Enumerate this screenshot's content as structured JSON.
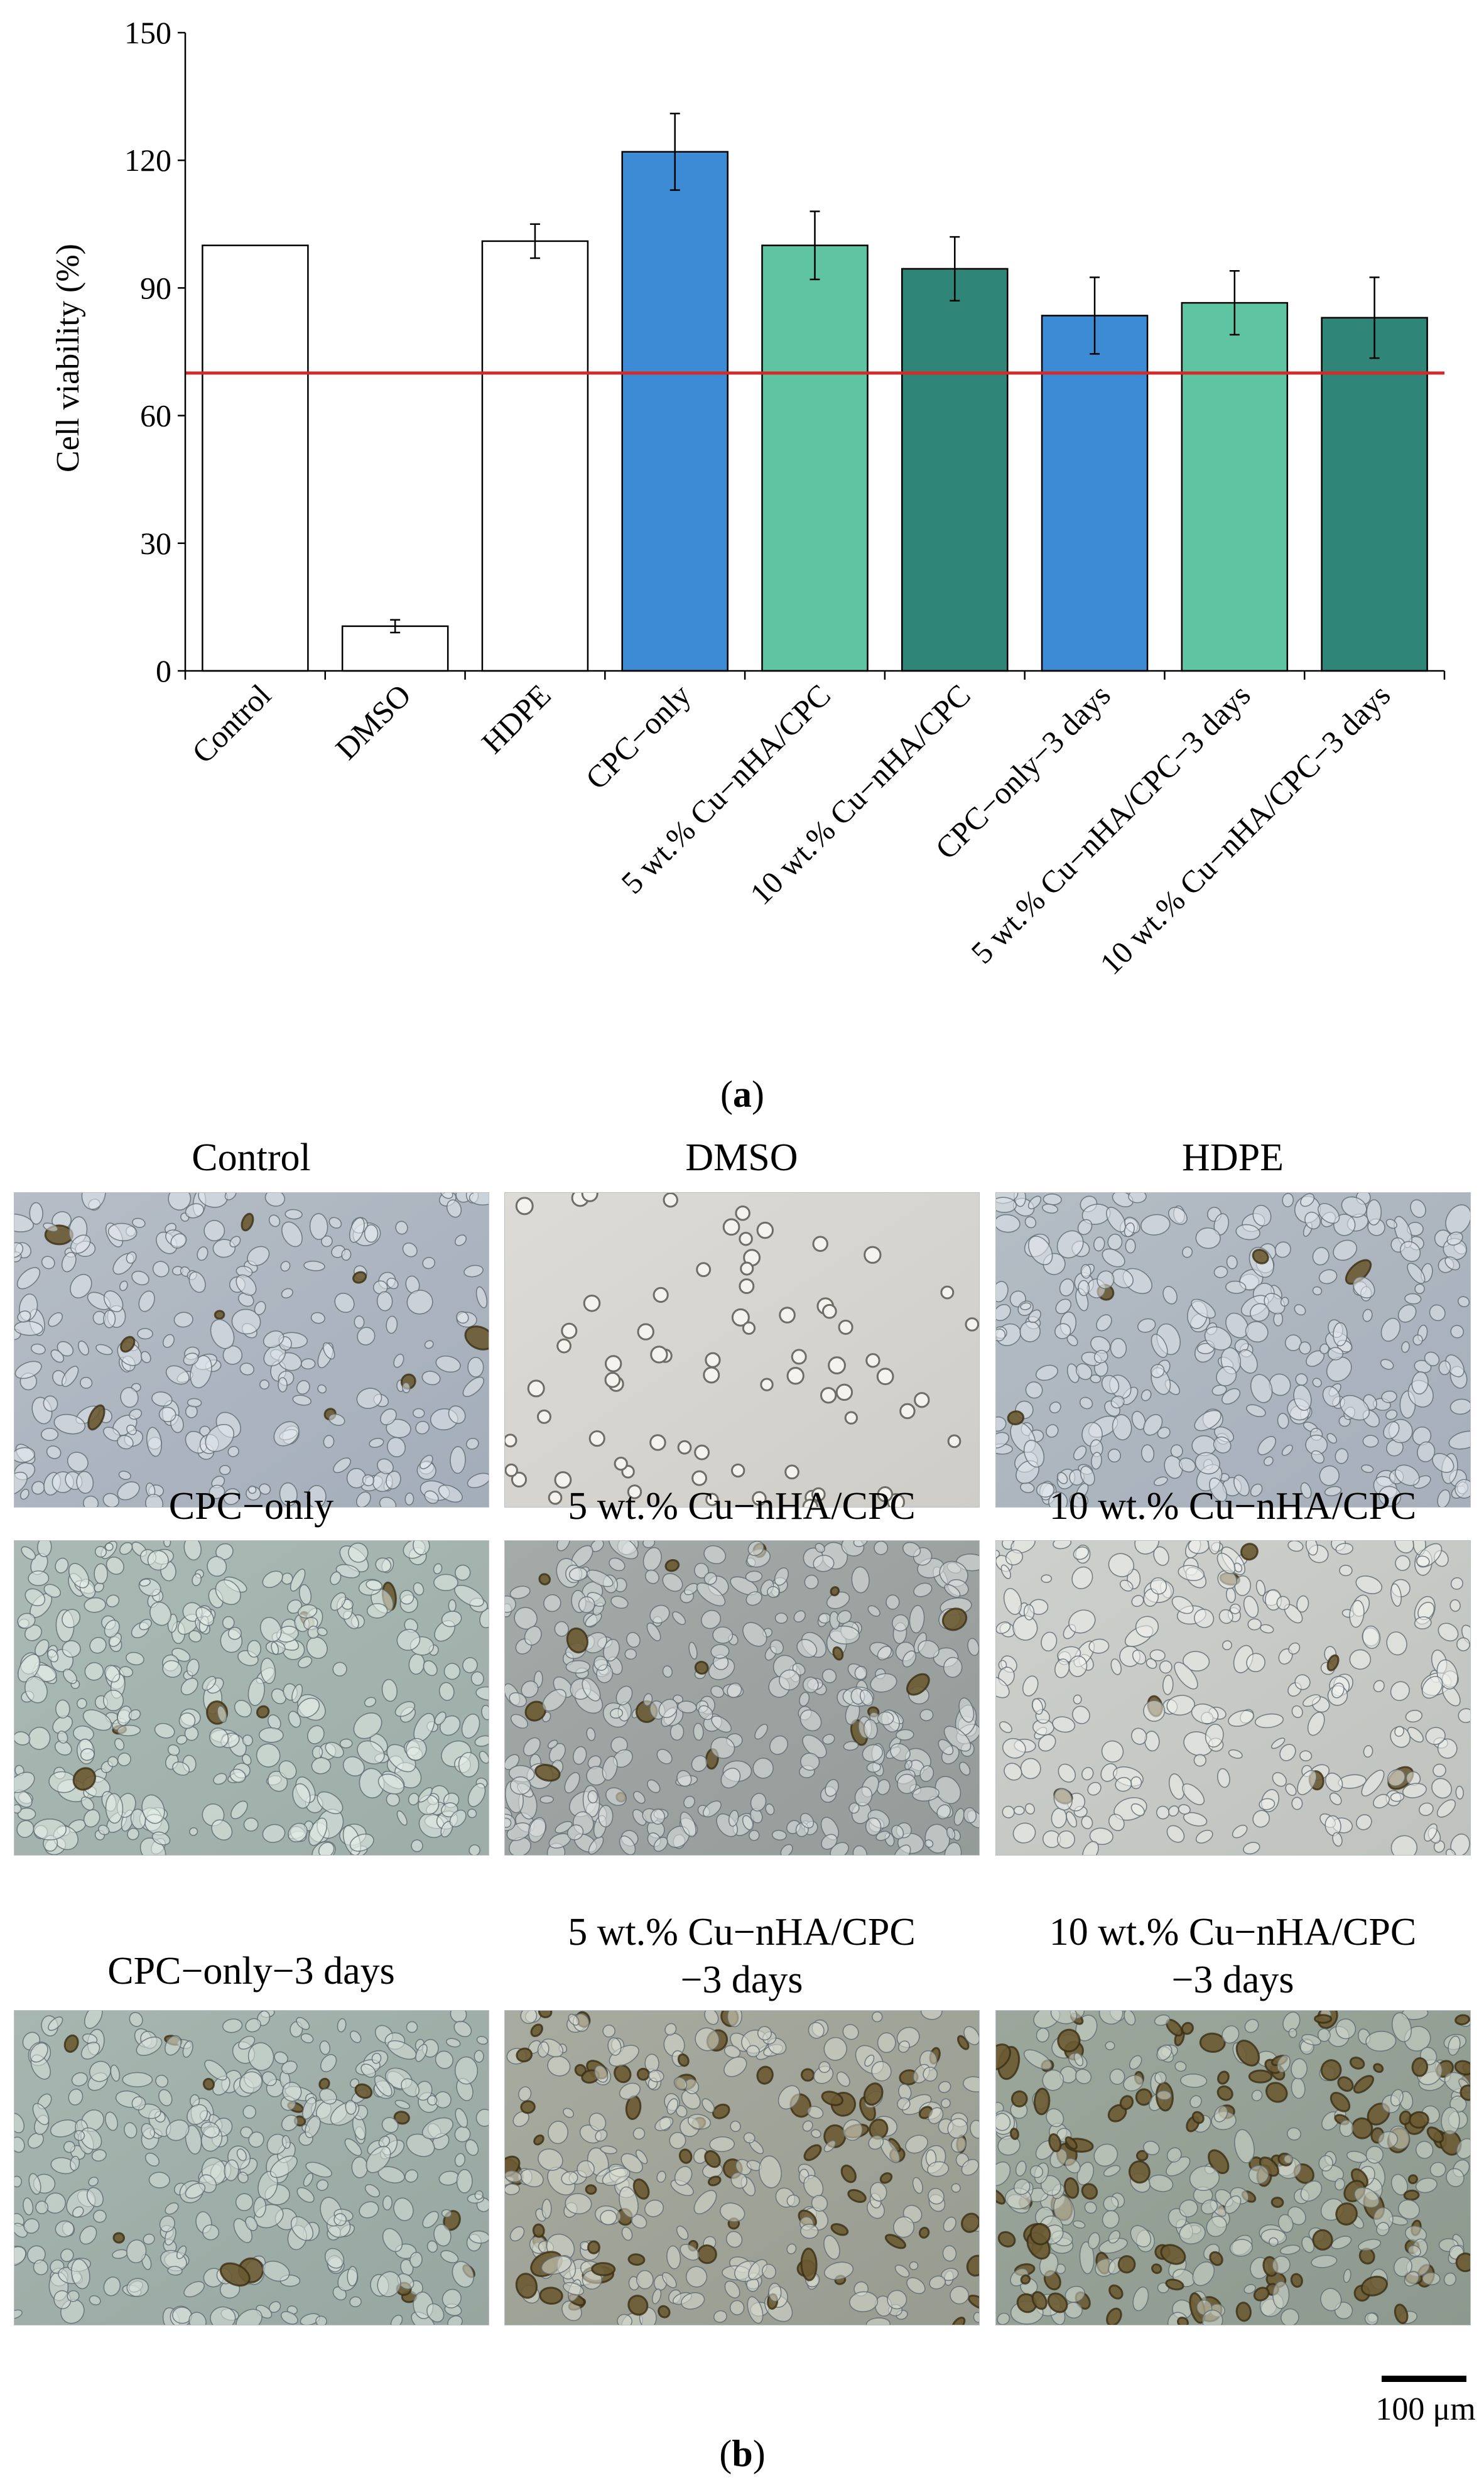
{
  "chart_data": {
    "type": "bar",
    "ylabel": "Cell viability (%)",
    "ylim": [
      0,
      150
    ],
    "yticks": [
      0,
      30,
      60,
      90,
      120,
      150
    ],
    "categories": [
      "Control",
      "DMSO",
      "HDPE",
      "CPC−only",
      "5 wt.% Cu−nHA/CPC",
      "10 wt.% Cu−nHA/CPC",
      "CPC−only−3 days",
      "5 wt.% Cu−nHA/CPC−3 days",
      "10 wt.% Cu−nHA/CPC−3 days"
    ],
    "values": [
      100,
      10.5,
      101,
      122,
      100,
      94.5,
      83.5,
      86.5,
      83
    ],
    "errors": [
      0,
      1.5,
      4,
      9,
      8,
      7.5,
      9,
      7.5,
      9.5
    ],
    "bar_colors": [
      "#ffffff",
      "#ffffff",
      "#ffffff",
      "#3d8bd4",
      "#5ec4a2",
      "#2f8577",
      "#3d8bd4",
      "#5ec4a2",
      "#2f8577"
    ],
    "reference_line": {
      "value": 70,
      "color": "#d42a2a"
    }
  },
  "labels": {
    "panel_a": "a",
    "panel_b": "b",
    "scale": "100 μm"
  },
  "micrographs": [
    {
      "caption": "Control",
      "tone": "sparse-blue",
      "density": 260,
      "dark": 0.03,
      "bg1": "#b6bdc6",
      "bg2": "#a3adb9",
      "cell": "#e4e9ee"
    },
    {
      "caption": "DMSO",
      "tone": "empty",
      "density": 70,
      "dark": 0.0,
      "bg1": "#dcdbd6",
      "bg2": "#cfcdc7",
      "cell": "#6f6e66"
    },
    {
      "caption": "HDPE",
      "tone": "dense-blue",
      "density": 300,
      "dark": 0.02,
      "bg1": "#b4bcc4",
      "bg2": "#a6afba",
      "cell": "#e2e7ec"
    },
    {
      "caption": "CPC−only",
      "tone": "green",
      "density": 340,
      "dark": 0.02,
      "bg1": "#aab9b4",
      "bg2": "#9dada7",
      "cell": "#e6eee9"
    },
    {
      "caption": "5 wt.% Cu−nHA/CPC",
      "tone": "grey",
      "density": 360,
      "dark": 0.05,
      "bg1": "#a4aaa8",
      "bg2": "#949b98",
      "cell": "#dfe4e1"
    },
    {
      "caption": "10 wt.% Cu−nHA/CPC",
      "tone": "light",
      "density": 260,
      "dark": 0.04,
      "bg1": "#cdd0cc",
      "bg2": "#bfc2be",
      "cell": "#f1f2ef"
    },
    {
      "caption": "CPC−only−3 days",
      "tone": "teal",
      "density": 330,
      "dark": 0.06,
      "bg1": "#a7b6b0",
      "bg2": "#97a6a0",
      "cell": "#d9e2dc"
    },
    {
      "caption": "5 wt.% Cu−nHA/CPC\n−3 days",
      "tone": "brown",
      "density": 320,
      "dark": 0.22,
      "bg1": "#a7aba0",
      "bg2": "#979b90",
      "cell": "#d8dcd2"
    },
    {
      "caption": "10 wt.% Cu−nHA/CPC\n−3 days",
      "tone": "dark-brown",
      "density": 360,
      "dark": 0.38,
      "bg1": "#9ca79c",
      "bg2": "#8d998e",
      "cell": "#cfd7cc"
    }
  ]
}
